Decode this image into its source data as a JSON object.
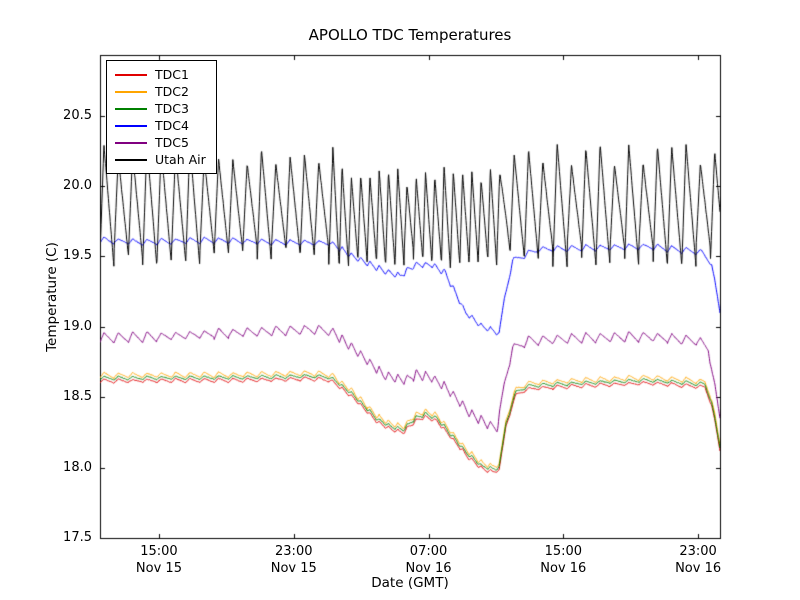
{
  "chart_data": {
    "type": "line",
    "title": "APOLLO TDC Temperatures",
    "xlabel": "Date (GMT)",
    "ylabel": "Temperature (C)",
    "x_encoding": "hours from Nov 15 00:00 GMT",
    "xlim": [
      11.5,
      48.3
    ],
    "ylim": [
      17.5,
      20.93
    ],
    "grid": false,
    "legend": {
      "position": "upper-left"
    },
    "yticks": [
      17.5,
      18.0,
      18.5,
      19.0,
      19.5,
      20.0,
      20.5
    ],
    "xticks": [
      {
        "pos": 15,
        "time": "15:00",
        "date": "Nov 15"
      },
      {
        "pos": 23,
        "time": "23:00",
        "date": "Nov 15"
      },
      {
        "pos": 31,
        "time": "07:00",
        "date": "Nov 16"
      },
      {
        "pos": 39,
        "time": "15:00",
        "date": "Nov 16"
      },
      {
        "pos": 47,
        "time": "23:00",
        "date": "Nov 16"
      }
    ],
    "oscillation": {
      "note": "HVAC-like sawtooth cycles shared by all series",
      "cycle_jitter": 0.12,
      "periods": [
        {
          "t0": 11.5,
          "t1": 25.3,
          "period": 0.85
        },
        {
          "t0": 25.3,
          "t1": 35.2,
          "period": 0.55
        },
        {
          "t0": 35.2,
          "t1": 48.3,
          "period": 0.85
        }
      ]
    },
    "series": [
      {
        "name": "TDC1",
        "color": "#e00000",
        "noise": 0.005,
        "amp_points": [
          [
            11.5,
            0.013
          ],
          [
            48.3,
            0.013
          ]
        ],
        "trend": [
          [
            11.5,
            18.615
          ],
          [
            20,
            18.62
          ],
          [
            24,
            18.63
          ],
          [
            25.2,
            18.62
          ],
          [
            26.5,
            18.5
          ],
          [
            28,
            18.32
          ],
          [
            28.8,
            18.27
          ],
          [
            29.5,
            18.25
          ],
          [
            30.2,
            18.33
          ],
          [
            30.8,
            18.36
          ],
          [
            31.5,
            18.33
          ],
          [
            32.3,
            18.22
          ],
          [
            33.3,
            18.08
          ],
          [
            34.2,
            17.99
          ],
          [
            34.8,
            17.97
          ],
          [
            35.2,
            17.98
          ],
          [
            35.6,
            18.3
          ],
          [
            36.2,
            18.52
          ],
          [
            37,
            18.56
          ],
          [
            40,
            18.58
          ],
          [
            44,
            18.6
          ],
          [
            46.5,
            18.58
          ],
          [
            47.4,
            18.57
          ],
          [
            47.8,
            18.45
          ],
          [
            48.3,
            18.12
          ]
        ]
      },
      {
        "name": "TDC2",
        "color": "#ffa500",
        "noise": 0.005,
        "amp_points": [
          [
            11.5,
            0.018
          ],
          [
            48.3,
            0.018
          ]
        ],
        "trend": [
          [
            11.5,
            18.655
          ],
          [
            20,
            18.66
          ],
          [
            24,
            18.67
          ],
          [
            25.2,
            18.66
          ],
          [
            26.5,
            18.54
          ],
          [
            28,
            18.36
          ],
          [
            28.8,
            18.31
          ],
          [
            29.5,
            18.29
          ],
          [
            30.2,
            18.37
          ],
          [
            30.8,
            18.4
          ],
          [
            31.5,
            18.37
          ],
          [
            32.3,
            18.26
          ],
          [
            33.3,
            18.12
          ],
          [
            34.2,
            18.03
          ],
          [
            34.8,
            18.01
          ],
          [
            35.2,
            18.02
          ],
          [
            35.6,
            18.34
          ],
          [
            36.2,
            18.56
          ],
          [
            37,
            18.6
          ],
          [
            40,
            18.62
          ],
          [
            44,
            18.64
          ],
          [
            46.5,
            18.62
          ],
          [
            47.4,
            18.61
          ],
          [
            47.8,
            18.49
          ],
          [
            48.3,
            18.16
          ]
        ]
      },
      {
        "name": "TDC3",
        "color": "#008000",
        "noise": 0.005,
        "amp_points": [
          [
            11.5,
            0.013
          ],
          [
            48.3,
            0.013
          ]
        ],
        "trend": [
          [
            11.5,
            18.635
          ],
          [
            20,
            18.64
          ],
          [
            24,
            18.65
          ],
          [
            25.2,
            18.64
          ],
          [
            26.5,
            18.52
          ],
          [
            28,
            18.34
          ],
          [
            28.8,
            18.29
          ],
          [
            29.5,
            18.27
          ],
          [
            30.2,
            18.35
          ],
          [
            30.8,
            18.38
          ],
          [
            31.5,
            18.35
          ],
          [
            32.3,
            18.24
          ],
          [
            33.3,
            18.1
          ],
          [
            34.2,
            18.01
          ],
          [
            34.8,
            17.99
          ],
          [
            35.2,
            18.0
          ],
          [
            35.6,
            18.32
          ],
          [
            36.2,
            18.54
          ],
          [
            37,
            18.58
          ],
          [
            40,
            18.6
          ],
          [
            44,
            18.62
          ],
          [
            46.5,
            18.6
          ],
          [
            47.4,
            18.59
          ],
          [
            47.8,
            18.47
          ],
          [
            48.3,
            18.14
          ]
        ]
      },
      {
        "name": "TDC4",
        "color": "#0000ff",
        "noise": 0.005,
        "amp_points": [
          [
            11.5,
            0.02
          ],
          [
            48.3,
            0.02
          ]
        ],
        "trend": [
          [
            11.5,
            19.615
          ],
          [
            14,
            19.6
          ],
          [
            18,
            19.615
          ],
          [
            22,
            19.6
          ],
          [
            25.2,
            19.595
          ],
          [
            26.5,
            19.5
          ],
          [
            28.3,
            19.4
          ],
          [
            29.3,
            19.36
          ],
          [
            30.2,
            19.44
          ],
          [
            31.2,
            19.44
          ],
          [
            32,
            19.38
          ],
          [
            33.2,
            19.1
          ],
          [
            34.2,
            19.0
          ],
          [
            34.9,
            18.97
          ],
          [
            35.2,
            18.95
          ],
          [
            35.5,
            19.2
          ],
          [
            36,
            19.47
          ],
          [
            37.5,
            19.55
          ],
          [
            44,
            19.57
          ],
          [
            47.2,
            19.53
          ],
          [
            47.8,
            19.45
          ],
          [
            48.3,
            19.1
          ]
        ]
      },
      {
        "name": "TDC5",
        "color": "#800080",
        "noise": 0.005,
        "amp_points": [
          [
            11.5,
            0.032
          ],
          [
            48.3,
            0.032
          ]
        ],
        "trend": [
          [
            11.5,
            18.92
          ],
          [
            15,
            18.93
          ],
          [
            20,
            18.96
          ],
          [
            24,
            18.98
          ],
          [
            25.2,
            18.97
          ],
          [
            26.5,
            18.85
          ],
          [
            28.3,
            18.66
          ],
          [
            29.5,
            18.62
          ],
          [
            30.3,
            18.66
          ],
          [
            31.2,
            18.64
          ],
          [
            32.2,
            18.55
          ],
          [
            33.5,
            18.38
          ],
          [
            34.5,
            18.31
          ],
          [
            35.1,
            18.28
          ],
          [
            35.5,
            18.6
          ],
          [
            36,
            18.85
          ],
          [
            37,
            18.9
          ],
          [
            40,
            18.92
          ],
          [
            44,
            18.93
          ],
          [
            47,
            18.9
          ],
          [
            47.6,
            18.85
          ],
          [
            48.3,
            18.35
          ]
        ]
      },
      {
        "name": "Utah Air",
        "color": "#000000",
        "noise": 0.012,
        "amp_points": [
          [
            11.5,
            0.36
          ],
          [
            25.3,
            0.36
          ],
          [
            26.0,
            0.31
          ],
          [
            35.0,
            0.31
          ],
          [
            35.7,
            0.36
          ],
          [
            48.3,
            0.36
          ]
        ],
        "trend": [
          [
            11.5,
            19.86
          ],
          [
            25.3,
            19.86
          ],
          [
            26.0,
            19.77
          ],
          [
            35.0,
            19.77
          ],
          [
            35.7,
            19.86
          ],
          [
            47.5,
            19.86
          ],
          [
            48.3,
            19.84
          ]
        ]
      }
    ]
  }
}
